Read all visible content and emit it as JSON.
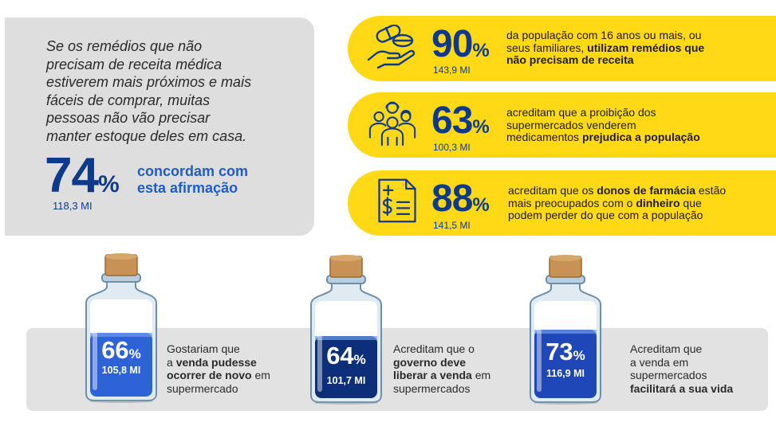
{
  "quote": {
    "lines": [
      "Se os remédios que não",
      "precisam de receita médica",
      "estiverem mais próximos e mais",
      "fáceis de comprar, muitas",
      "pessoas não vão precisar",
      "manter estoque deles em casa."
    ],
    "percent": "74",
    "percent_symbol": "%",
    "count": "118,3 MI",
    "agree_lines": [
      "concordam com",
      "esta afirmação"
    ]
  },
  "stats": [
    {
      "icon": "pills-hand-icon",
      "percent": "90",
      "percent_symbol": "%",
      "count": "143,9 MI",
      "text_line1": "da população com 16 anos ou mais, ou",
      "text_line2_plain": "seus familiares, ",
      "text_line2_bold": "utilizam remédios que",
      "text_line3_bold": "não precisam de receita"
    },
    {
      "icon": "group-people-icon",
      "percent": "63",
      "percent_symbol": "%",
      "count": "100,3 MI",
      "text_line1": "acreditam que a proibição dos",
      "text_line2": "supermercados venderem",
      "text_line3_plain": "medicamentos ",
      "text_line3_bold": "prejudica a população"
    },
    {
      "icon": "receipt-dollar-icon",
      "percent": "88",
      "percent_symbol": "%",
      "count": "141,5 MI",
      "text_line1_plain": "acreditam que os ",
      "text_line1_bold": "donos de farmácia",
      "text_line1_end": " estão",
      "text_line2_plain": "mais preocupados com o ",
      "text_line2_bold": "dinheiro",
      "text_line2_end": " que",
      "text_line3": "podem perder do que com a população"
    }
  ],
  "bottles": [
    {
      "percent": "66",
      "percent_symbol": "%",
      "count": "105,8 MI",
      "fill_fraction": 0.66,
      "liquid_color": "#2d63d6",
      "line1": "Gostariam que",
      "line2_plain": "a ",
      "line2_bold": "venda pudesse",
      "line3_bold": "ocorrer de novo",
      "line3_end": " em",
      "line4": "supermercado"
    },
    {
      "percent": "64",
      "percent_symbol": "%",
      "count": "101,7 MI",
      "fill_fraction": 0.64,
      "liquid_color": "#0d2f7a",
      "line1": "Acreditam que o",
      "line2_bold": "governo deve",
      "line3_bold": "liberar a venda",
      "line3_end": " em",
      "line4": "supermercados"
    },
    {
      "percent": "73",
      "percent_symbol": "%",
      "count": "116,9 MI",
      "fill_fraction": 0.73,
      "liquid_color": "#1f47b8",
      "line1": "Acreditam que",
      "line2": "a venda em",
      "line3": "supermercados",
      "line4_bold": "facilitará a sua vida"
    }
  ],
  "colors": {
    "navy": "#0f3a8c",
    "blue": "#1f5cc8",
    "yellow": "#ffd816",
    "gray": "#dededf"
  }
}
